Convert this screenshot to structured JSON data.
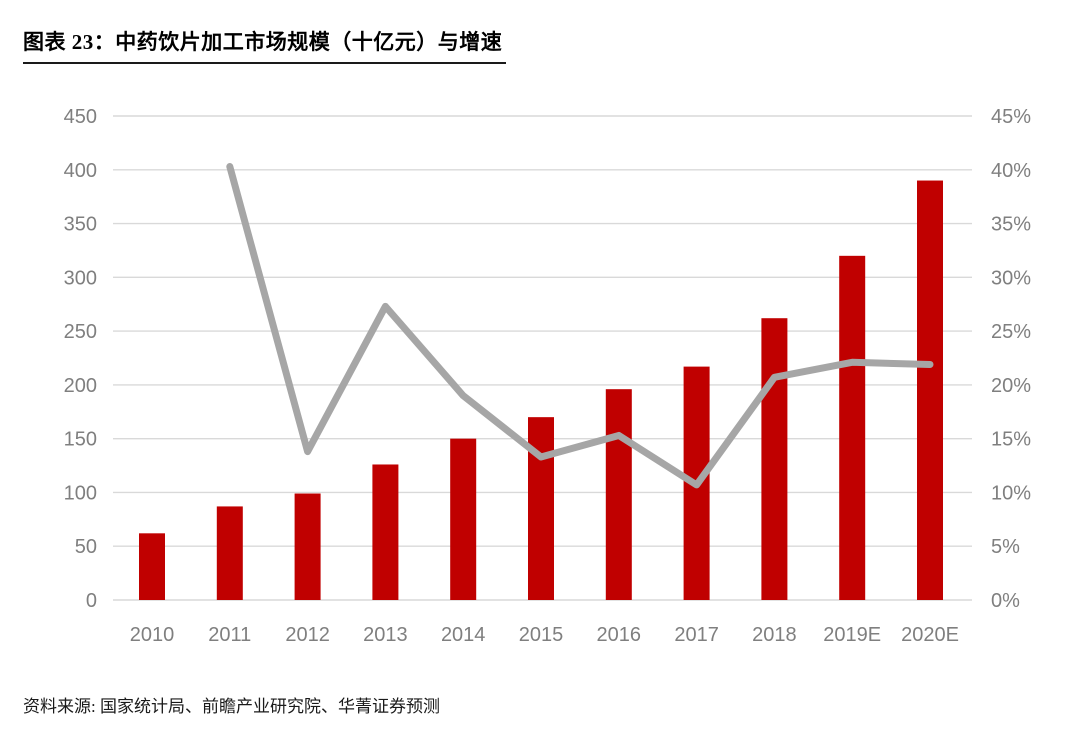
{
  "header": {
    "title": "图表 23：中药饮片加工市场规模（十亿元）与增速"
  },
  "footer": {
    "source": "资料来源: 国家统计局、前瞻产业研究院、华菁证券预测"
  },
  "colors": {
    "bar": "#c00000",
    "line": "#a6a6a6",
    "grid": "#d9d9d9",
    "axis_text": "#7f7f7f",
    "title_text": "#000000"
  },
  "chart_data": {
    "type": "bar",
    "title": "图表 23：中药饮片加工市场规模（十亿元）与增速",
    "categories": [
      "2010",
      "2011",
      "2012",
      "2013",
      "2014",
      "2015",
      "2016",
      "2017",
      "2018",
      "2019E",
      "2020E"
    ],
    "series": [
      {
        "name": "市场规模（十亿元）",
        "type": "bar",
        "yaxis": "left",
        "values": [
          62,
          87,
          99,
          126,
          150,
          170,
          196,
          217,
          262,
          320,
          390
        ]
      },
      {
        "name": "增速",
        "type": "line",
        "yaxis": "right",
        "unit": "%",
        "values": [
          null,
          40.3,
          13.8,
          27.3,
          19.0,
          13.3,
          15.3,
          10.7,
          20.7,
          22.1,
          21.9
        ]
      }
    ],
    "left_axis": {
      "min": 0,
      "max": 450,
      "step": 50,
      "ticks": [
        "0",
        "50",
        "100",
        "150",
        "200",
        "250",
        "300",
        "350",
        "400",
        "450"
      ]
    },
    "right_axis": {
      "min": 0,
      "max": 45,
      "step": 5,
      "ticks": [
        "0%",
        "5%",
        "10%",
        "15%",
        "20%",
        "25%",
        "30%",
        "35%",
        "40%",
        "45%"
      ]
    },
    "grid": true,
    "legend": "none"
  }
}
